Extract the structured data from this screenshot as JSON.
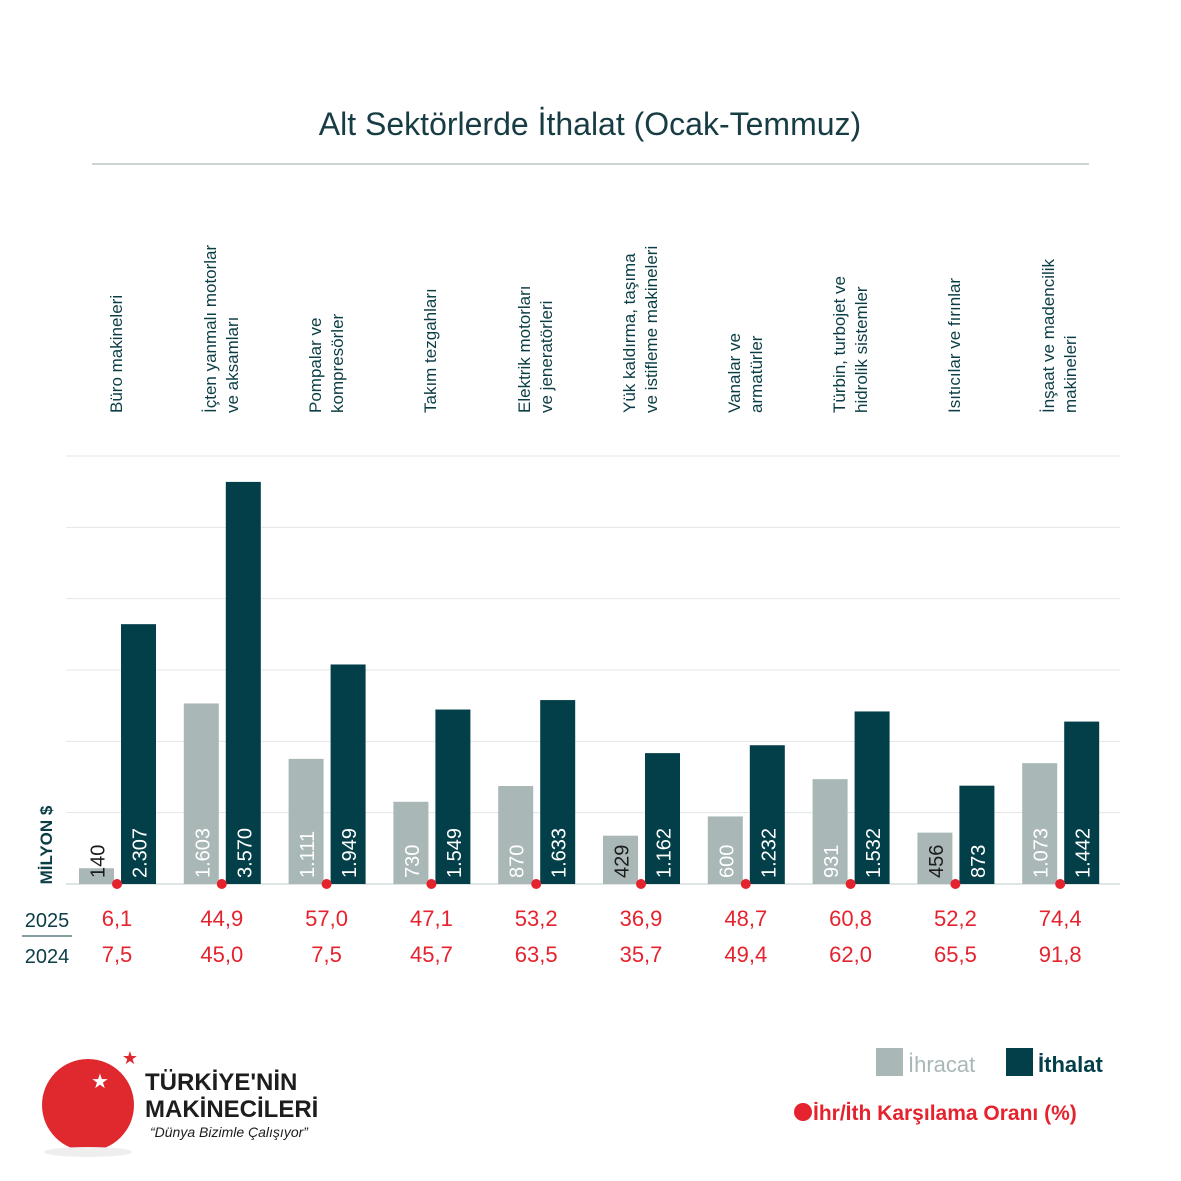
{
  "chart_data": {
    "type": "bar",
    "title": "Alt Sektörlerde İthalat (Ocak-Temmuz)",
    "y_axis_label": "MİLYON $",
    "categories": [
      "Büro makineleri",
      "İçten yanmalı motorlar\nve aksamları",
      "Pompalar ve\nkompresörler",
      "Takım tezgahları",
      "Elektrik motorları\nve jeneratörleri",
      "Yük kaldırma, taşıma\nve istifleme makineleri",
      "Vanalar ve\narmatürler",
      "Türbin, turbojet ve\nhidrolik sistemler",
      "Isıtıcılar ve fırınlar",
      "İnşaat ve madencilik\nmakineleri"
    ],
    "series": [
      {
        "name": "İhracat",
        "color": "#a9b7b7",
        "values": [
          140,
          1603,
          1111,
          730,
          870,
          429,
          600,
          931,
          456,
          1073
        ],
        "value_labels": [
          "140",
          "1.603",
          "1.111",
          "730",
          "870",
          "429",
          "600",
          "931",
          "456",
          "1.073"
        ]
      },
      {
        "name": "İthalat",
        "color": "#033f48",
        "values": [
          2307,
          3570,
          1949,
          1549,
          1633,
          1162,
          1232,
          1532,
          873,
          1442
        ],
        "value_labels": [
          "2.307",
          "3.570",
          "1.949",
          "1.549",
          "1.633",
          "1.162",
          "1.232",
          "1.532",
          "873",
          "1.442"
        ]
      }
    ],
    "ylim": [
      0,
      3800
    ],
    "ratio": {
      "name": "İhr/İth Karşılama Oranı (%)",
      "color": "#e5232e",
      "rows": [
        {
          "label": "2025",
          "values": [
            6.1,
            44.9,
            57.0,
            47.1,
            53.2,
            36.9,
            48.7,
            60.8,
            52.2,
            74.4
          ],
          "value_labels": [
            "6,1",
            "44,9",
            "57,0",
            "47,1",
            "53,2",
            "36,9",
            "48,7",
            "60,8",
            "52,2",
            "74,4"
          ]
        },
        {
          "label": "2024",
          "values": [
            7.5,
            45.0,
            7.5,
            45.7,
            63.5,
            35.7,
            49.4,
            62.0,
            65.5,
            91.8
          ],
          "value_labels": [
            "7,5",
            "45,0",
            "7,5",
            "45,7",
            "63,5",
            "35,7",
            "49,4",
            "62,0",
            "65,5",
            "91,8"
          ]
        }
      ]
    }
  },
  "logo": {
    "line1": "TÜRKİYE'NİN",
    "line2": "MAKİNECİLERİ",
    "slogan": "“Dünya Bizimle Çalışıyor”"
  }
}
